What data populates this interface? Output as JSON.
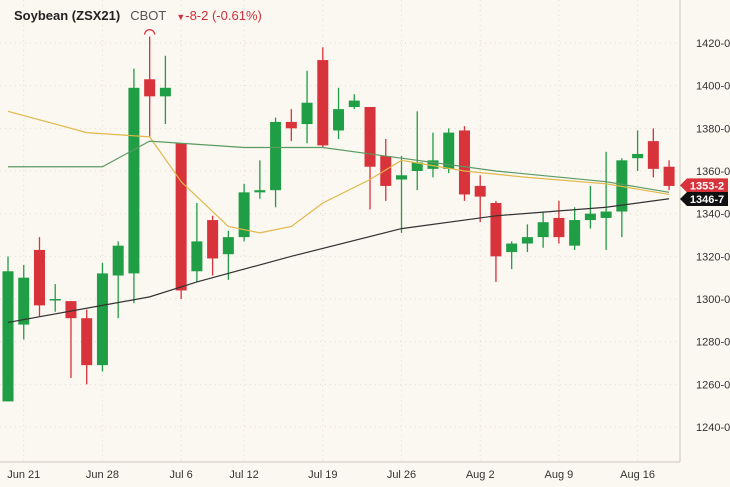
{
  "header": {
    "title": "Soybean (ZSX21)",
    "exchange": "CBOT",
    "change_icon": "triangle-down-icon",
    "change": "-8-2 (-0.61%)"
  },
  "colors": {
    "up": "#1f9e45",
    "down": "#d8323a",
    "ma_short": "#e2b84a",
    "ma_mid": "#5a9a62",
    "ma_long": "#333333",
    "last_price_tag": "#d8323a",
    "ma_tag": "#111111"
  },
  "chart_data": {
    "type": "candlestick",
    "title": "Soybean (ZSX21)",
    "ylim": [
      1230,
      1440
    ],
    "grid": true,
    "y_ticks": [
      1240,
      1260,
      1280,
      1300,
      1320,
      1340,
      1360,
      1380,
      1400,
      1420
    ],
    "y_tick_labels": [
      "1240-0",
      "1260-0",
      "1280-0",
      "1300-0",
      "1320-0",
      "1340-0",
      "1360-0",
      "1380-0",
      "1400-0",
      "1420-0"
    ],
    "x_tick_labels": [
      {
        "date": "Jun 21",
        "label": "Jun 21"
      },
      {
        "date": "Jun 28",
        "label": "Jun 28"
      },
      {
        "date": "Jul 6",
        "label": "Jul 6"
      },
      {
        "date": "Jul 12",
        "label": "Jul 12"
      },
      {
        "date": "Jul 19",
        "label": "Jul 19"
      },
      {
        "date": "Jul 26",
        "label": "Jul 26"
      },
      {
        "date": "Aug 2",
        "label": "Aug 2"
      },
      {
        "date": "Aug 9",
        "label": "Aug 9"
      },
      {
        "date": "Aug 16",
        "label": "Aug 16"
      }
    ],
    "candles": [
      {
        "date": "Jun 18",
        "o": 1252,
        "h": 1320,
        "l": 1252,
        "c": 1313
      },
      {
        "date": "Jun 21",
        "o": 1288,
        "h": 1316,
        "l": 1281,
        "c": 1310
      },
      {
        "date": "Jun 22",
        "o": 1323,
        "h": 1329,
        "l": 1292,
        "c": 1297
      },
      {
        "date": "Jun 23",
        "o": 1300,
        "h": 1307,
        "l": 1294,
        "c": 1300
      },
      {
        "date": "Jun 24",
        "o": 1299,
        "h": 1299,
        "l": 1263,
        "c": 1291
      },
      {
        "date": "Jun 25",
        "o": 1291,
        "h": 1295,
        "l": 1260,
        "c": 1269
      },
      {
        "date": "Jun 28",
        "o": 1269,
        "h": 1317,
        "l": 1266,
        "c": 1312
      },
      {
        "date": "Jun 29",
        "o": 1311,
        "h": 1327,
        "l": 1291,
        "c": 1325
      },
      {
        "date": "Jun 30",
        "o": 1312,
        "h": 1408,
        "l": 1298,
        "c": 1399
      },
      {
        "date": "Jul 1",
        "o": 1403,
        "h": 1423,
        "l": 1376,
        "c": 1395
      },
      {
        "date": "Jul 2",
        "o": 1395,
        "h": 1414,
        "l": 1382,
        "c": 1399
      },
      {
        "date": "Jul 6",
        "o": 1373,
        "h": 1373,
        "l": 1300,
        "c": 1304
      },
      {
        "date": "Jul 7",
        "o": 1313,
        "h": 1345,
        "l": 1308,
        "c": 1327
      },
      {
        "date": "Jul 8",
        "o": 1337,
        "h": 1339,
        "l": 1311,
        "c": 1319
      },
      {
        "date": "Jul 9",
        "o": 1321,
        "h": 1332,
        "l": 1309,
        "c": 1329
      },
      {
        "date": "Jul 12",
        "o": 1329,
        "h": 1354,
        "l": 1327,
        "c": 1350
      },
      {
        "date": "Jul 13",
        "o": 1350,
        "h": 1365,
        "l": 1347,
        "c": 1351
      },
      {
        "date": "Jul 14",
        "o": 1351,
        "h": 1385,
        "l": 1343,
        "c": 1383
      },
      {
        "date": "Jul 15",
        "o": 1383,
        "h": 1389,
        "l": 1374,
        "c": 1380
      },
      {
        "date": "Jul 16",
        "o": 1382,
        "h": 1407,
        "l": 1373,
        "c": 1392
      },
      {
        "date": "Jul 19",
        "o": 1412,
        "h": 1418,
        "l": 1371,
        "c": 1372
      },
      {
        "date": "Jul 20",
        "o": 1379,
        "h": 1399,
        "l": 1375,
        "c": 1389
      },
      {
        "date": "Jul 21",
        "o": 1390,
        "h": 1396,
        "l": 1389,
        "c": 1393
      },
      {
        "date": "Jul 22",
        "o": 1390,
        "h": 1390,
        "l": 1342,
        "c": 1362
      },
      {
        "date": "Jul 23",
        "o": 1367,
        "h": 1375,
        "l": 1346,
        "c": 1353
      },
      {
        "date": "Jul 26",
        "o": 1356,
        "h": 1367,
        "l": 1331,
        "c": 1358
      },
      {
        "date": "Jul 27",
        "o": 1360,
        "h": 1388,
        "l": 1351,
        "c": 1364
      },
      {
        "date": "Jul 28",
        "o": 1361,
        "h": 1378,
        "l": 1357,
        "c": 1365
      },
      {
        "date": "Jul 29",
        "o": 1361,
        "h": 1380,
        "l": 1359,
        "c": 1378
      },
      {
        "date": "Jul 30",
        "o": 1379,
        "h": 1381,
        "l": 1346,
        "c": 1349
      },
      {
        "date": "Aug 2",
        "o": 1353,
        "h": 1358,
        "l": 1336,
        "c": 1348
      },
      {
        "date": "Aug 3",
        "o": 1345,
        "h": 1346,
        "l": 1308,
        "c": 1320
      },
      {
        "date": "Aug 4",
        "o": 1322,
        "h": 1327,
        "l": 1314,
        "c": 1326
      },
      {
        "date": "Aug 5",
        "o": 1326,
        "h": 1335,
        "l": 1322,
        "c": 1329
      },
      {
        "date": "Aug 6",
        "o": 1329,
        "h": 1341,
        "l": 1324,
        "c": 1336
      },
      {
        "date": "Aug 9",
        "o": 1338,
        "h": 1346,
        "l": 1326,
        "c": 1329
      },
      {
        "date": "Aug 10",
        "o": 1325,
        "h": 1343,
        "l": 1323,
        "c": 1337
      },
      {
        "date": "Aug 11",
        "o": 1337,
        "h": 1353,
        "l": 1333,
        "c": 1340
      },
      {
        "date": "Aug 12",
        "o": 1338,
        "h": 1369,
        "l": 1323,
        "c": 1341
      },
      {
        "date": "Aug 13",
        "o": 1341,
        "h": 1366,
        "l": 1329,
        "c": 1365
      },
      {
        "date": "Aug 16",
        "o": 1366,
        "h": 1379,
        "l": 1360,
        "c": 1368
      },
      {
        "date": "Aug 17",
        "o": 1374,
        "h": 1380,
        "l": 1357,
        "c": 1361
      },
      {
        "date": "Aug 18",
        "o": 1362,
        "h": 1365,
        "l": 1351,
        "c": 1353
      }
    ],
    "moving_averages": [
      {
        "color": "#e2b84a",
        "points": [
          [
            1,
            1388
          ],
          [
            6,
            1378
          ],
          [
            10,
            1376
          ],
          [
            12,
            1355
          ],
          [
            15,
            1334
          ],
          [
            17,
            1331
          ],
          [
            19,
            1334
          ],
          [
            21,
            1345
          ],
          [
            24,
            1356
          ],
          [
            26,
            1365
          ],
          [
            30,
            1360
          ],
          [
            34,
            1357
          ],
          [
            39,
            1354
          ],
          [
            43,
            1349
          ]
        ]
      },
      {
        "color": "#5a9a62",
        "points": [
          [
            1,
            1362
          ],
          [
            7,
            1362
          ],
          [
            10,
            1374
          ],
          [
            16,
            1371
          ],
          [
            21,
            1371
          ],
          [
            26,
            1366
          ],
          [
            32,
            1360
          ],
          [
            39,
            1355
          ],
          [
            43,
            1350
          ]
        ]
      },
      {
        "color": "#333333",
        "points": [
          [
            1,
            1289
          ],
          [
            7,
            1297
          ],
          [
            10,
            1301
          ],
          [
            13,
            1308
          ],
          [
            19,
            1320
          ],
          [
            26,
            1333
          ],
          [
            32,
            1339
          ],
          [
            39,
            1343
          ],
          [
            43,
            1347
          ]
        ]
      }
    ],
    "high_marker_date": "Jul 1",
    "price_tags": [
      {
        "label": "1353-2",
        "value": 1353.25,
        "color": "#d8323a"
      },
      {
        "label": "1346-7",
        "value": 1346.875,
        "color": "#111111"
      }
    ]
  }
}
